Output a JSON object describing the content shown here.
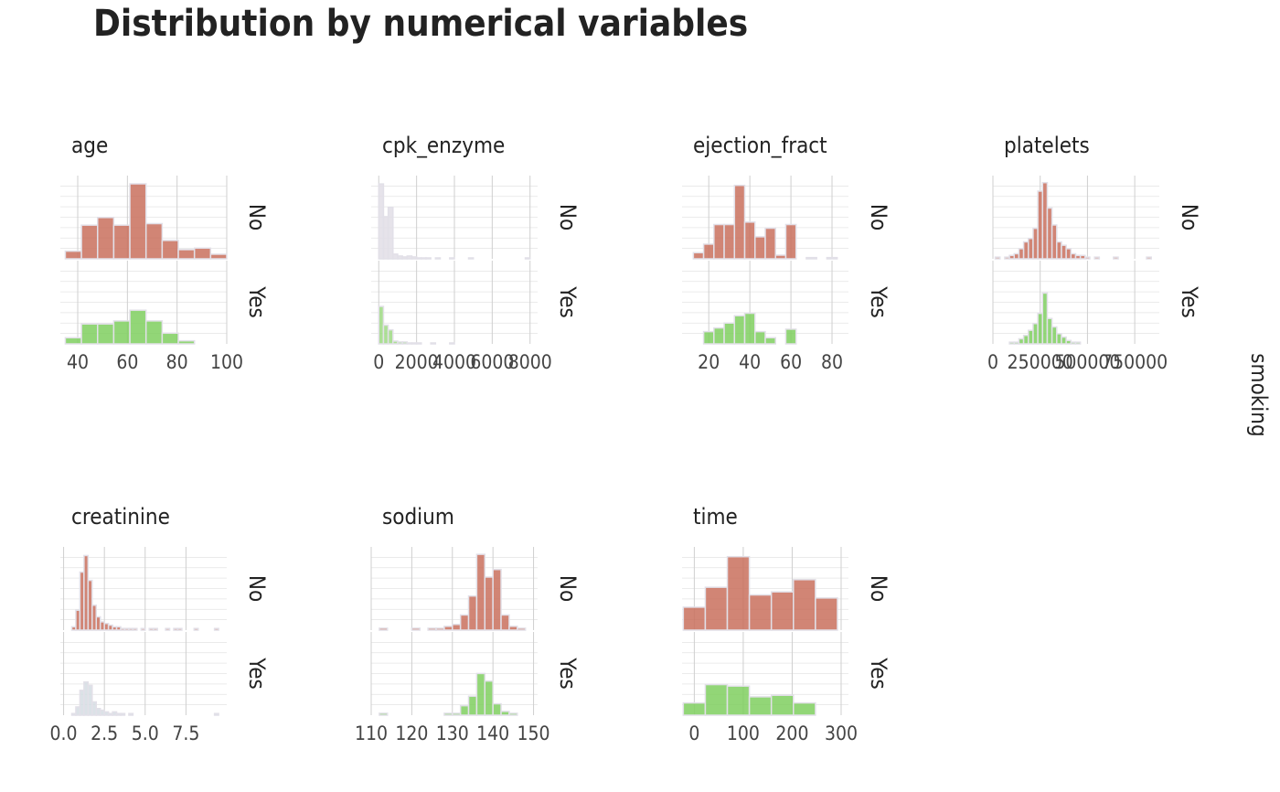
{
  "title": "Distribution by numerical variables",
  "facet_label": "smoking",
  "chart_data": [
    {
      "type": "histogram",
      "title": "age",
      "xlim": [
        33,
        100
      ],
      "xticks": [
        40,
        60,
        80,
        100
      ],
      "ylim": [
        0,
        52
      ],
      "bins": [
        35,
        41.5,
        48,
        54.5,
        61,
        67.5,
        74,
        80.5,
        87,
        93.5,
        100
      ],
      "series": [
        {
          "name": "No",
          "color": "#c9705d",
          "values": [
            5,
            22,
            27,
            22,
            49,
            23,
            12,
            6,
            7,
            3
          ]
        },
        {
          "name": "Yes",
          "color": "#7fcf5f",
          "values": [
            4,
            13,
            13,
            15,
            22,
            15,
            7,
            2,
            0,
            0
          ]
        }
      ]
    },
    {
      "type": "histogram",
      "title": "cpk_enzyme",
      "xlim": [
        -400,
        8400
      ],
      "xticks": [
        0,
        2000,
        4000,
        6000,
        8000
      ],
      "ylim": [
        0,
        85
      ],
      "bins": [
        0,
        250,
        500,
        750,
        1000,
        1250,
        1500,
        1750,
        2000,
        2250,
        2500,
        2750,
        3000,
        3250,
        3500,
        3750,
        4000,
        4250,
        4500,
        4750,
        5000,
        5250,
        5500,
        5750,
        6000,
        6250,
        6500,
        6750,
        7000,
        7250,
        7500,
        7750,
        8000
      ],
      "series": [
        {
          "name": "No",
          "color": "#e2dee6",
          "values": [
            80,
            45,
            55,
            5,
            3,
            2,
            3,
            2,
            1,
            1,
            1,
            0,
            1,
            0,
            0,
            1,
            0,
            0,
            0,
            1,
            0,
            0,
            0,
            0,
            0,
            0,
            0,
            0,
            0,
            0,
            0,
            1
          ]
        },
        {
          "name": "Yes",
          "color": "#9ed983",
          "values": [
            40,
            20,
            15,
            3,
            2,
            2,
            1,
            1,
            1,
            0,
            0,
            1,
            0,
            0,
            0,
            1,
            0,
            0,
            0,
            0,
            0,
            0,
            0,
            0,
            0,
            0,
            0,
            0,
            0,
            0,
            0,
            0
          ]
        }
      ]
    },
    {
      "type": "histogram",
      "title": "ejection_fract",
      "xlim": [
        7,
        88
      ],
      "xticks": [
        20,
        40,
        60,
        80
      ],
      "ylim": [
        0,
        65
      ],
      "bins": [
        12.5,
        17.5,
        22.5,
        27.5,
        32.5,
        37.5,
        42.5,
        47.5,
        52.5,
        57.5,
        62.5,
        67.5,
        72.5,
        77.5,
        82.5
      ],
      "series": [
        {
          "name": "No",
          "color": "#c9705d",
          "values": [
            5,
            12,
            28,
            28,
            60,
            30,
            18,
            25,
            3,
            28,
            0,
            1,
            0,
            1
          ]
        },
        {
          "name": "Yes",
          "color": "#7fcf5f",
          "values": [
            0,
            10,
            13,
            17,
            23,
            25,
            10,
            5,
            0,
            12,
            0,
            0,
            0,
            0
          ]
        }
      ]
    },
    {
      "type": "histogram",
      "title": "platelets",
      "xlim": [
        0,
        880000
      ],
      "xticks": [
        0,
        250000,
        500000,
        750000
      ],
      "ylim": [
        0,
        47
      ],
      "bins": [
        12500,
        37500,
        62500,
        87500,
        112500,
        137500,
        162500,
        187500,
        212500,
        237500,
        262500,
        287500,
        312500,
        337500,
        362500,
        387500,
        412500,
        437500,
        462500,
        487500,
        512500,
        537500,
        562500,
        587500,
        612500,
        637500,
        662500,
        687500,
        712500,
        737500,
        762500,
        787500,
        812500,
        837500,
        862500
      ],
      "series": [
        {
          "name": "No",
          "color": "#c9705d",
          "values": [
            1,
            0,
            1,
            2,
            3,
            6,
            10,
            12,
            18,
            40,
            45,
            30,
            20,
            10,
            8,
            6,
            3,
            2,
            2,
            1,
            0,
            1,
            0,
            0,
            0,
            1,
            0,
            0,
            0,
            0,
            0,
            0,
            1,
            0
          ]
        },
        {
          "name": "Yes",
          "color": "#7fcf5f",
          "values": [
            0,
            0,
            0,
            1,
            1,
            3,
            5,
            8,
            12,
            18,
            30,
            15,
            10,
            6,
            4,
            2,
            1,
            1,
            0,
            0,
            0,
            0,
            0,
            0,
            0,
            0,
            0,
            0,
            0,
            0,
            0,
            0,
            0,
            0
          ]
        }
      ]
    },
    {
      "type": "histogram",
      "title": "creatinine",
      "xlim": [
        -0.2,
        10
      ],
      "xticks": [
        {
          "value": 0,
          "label": "0.0"
        },
        {
          "value": 2.5,
          "label": "2.5"
        },
        {
          "value": 5,
          "label": "5.0"
        },
        {
          "value": 7.5,
          "label": "7.5"
        }
      ],
      "ylim": [
        0,
        48
      ],
      "bins": [
        0.5,
        0.75,
        1,
        1.25,
        1.5,
        1.75,
        2,
        2.25,
        2.5,
        2.75,
        3,
        3.25,
        3.5,
        3.75,
        4,
        4.25,
        4.5,
        4.75,
        5,
        5.25,
        5.5,
        5.75,
        6,
        6.25,
        6.5,
        6.75,
        7,
        7.25,
        7.5,
        7.75,
        8,
        8.25,
        8.5,
        8.75,
        9,
        9.25,
        9.5
      ],
      "series": [
        {
          "name": "No",
          "color": "#c9705d",
          "values": [
            2,
            12,
            35,
            45,
            30,
            15,
            8,
            5,
            4,
            3,
            2,
            2,
            1,
            1,
            1,
            1,
            0,
            1,
            0,
            1,
            1,
            0,
            0,
            1,
            0,
            1,
            1,
            0,
            0,
            0,
            1,
            0,
            0,
            0,
            0,
            1
          ]
        },
        {
          "name": "Yes",
          "color": "#d5dde3",
          "values": [
            1,
            5,
            15,
            20,
            18,
            8,
            4,
            3,
            2,
            1,
            2,
            1,
            1,
            0,
            1,
            0,
            0,
            0,
            0,
            0,
            0,
            0,
            0,
            0,
            0,
            0,
            0,
            0,
            0,
            0,
            0,
            0,
            0,
            0,
            0,
            1
          ]
        }
      ]
    },
    {
      "type": "histogram",
      "title": "sodium",
      "xlim": [
        110,
        151
      ],
      "xticks": [
        110,
        120,
        130,
        140,
        150
      ],
      "ylim": [
        0,
        42
      ],
      "bins": [
        112,
        114,
        116,
        118,
        120,
        122,
        124,
        126,
        128,
        130,
        132,
        134,
        136,
        138,
        140,
        142,
        144,
        146,
        148
      ],
      "series": [
        {
          "name": "No",
          "color": "#c9705d",
          "values": [
            1,
            0,
            0,
            0,
            1,
            0,
            1,
            1,
            2,
            3,
            8,
            18,
            40,
            28,
            32,
            8,
            2,
            1
          ]
        },
        {
          "name": "Yes",
          "color": "#7fcf5f",
          "values": [
            1,
            0,
            0,
            0,
            0,
            0,
            0,
            0,
            1,
            1,
            5,
            10,
            22,
            18,
            6,
            2,
            1,
            0
          ]
        }
      ]
    },
    {
      "type": "histogram",
      "title": "time",
      "xlim": [
        -25,
        315
      ],
      "xticks": [
        0,
        100,
        200,
        300
      ],
      "ylim": [
        0,
        52
      ],
      "bins": [
        -22.5,
        22.5,
        67.5,
        112.5,
        157.5,
        202.5,
        247.5,
        292.5
      ],
      "series": [
        {
          "name": "No",
          "color": "#c9705d",
          "values": [
            15,
            28,
            48,
            23,
            25,
            33,
            21
          ]
        },
        {
          "name": "Yes",
          "color": "#7fcf5f",
          "values": [
            8,
            20,
            19,
            12,
            13,
            8,
            0
          ]
        }
      ]
    }
  ]
}
